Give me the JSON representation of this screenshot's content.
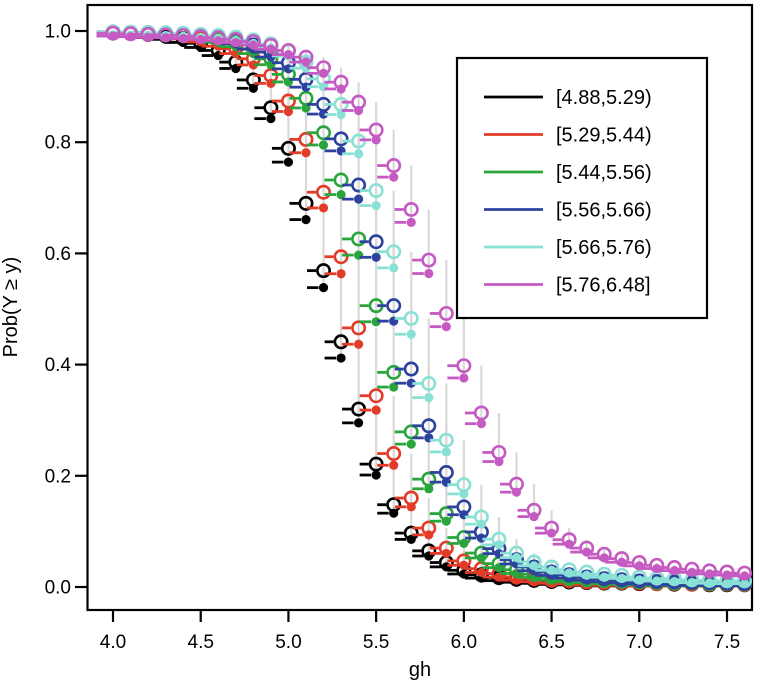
{
  "figure": {
    "background": "#ffffff"
  },
  "chart_data": {
    "type": "scatter",
    "subtype": "step-probability-curves-with-open-and-filled-circles",
    "title": "",
    "xlabel": "gh",
    "ylabel": "Prob(Y ≥ y)",
    "xlim": [
      3.87,
      7.65
    ],
    "ylim": [
      -0.05,
      1.045
    ],
    "grid": false,
    "legend_position": "top-right",
    "riser_color": "#d9d9d9",
    "x_ticks": [
      4.0,
      4.5,
      5.0,
      5.5,
      6.0,
      6.5,
      7.0,
      7.5
    ],
    "x_tick_labels": [
      "4.0",
      "4.5",
      "5.0",
      "5.5",
      "6.0",
      "6.5",
      "7.0",
      "7.5"
    ],
    "y_ticks": [
      0.0,
      0.2,
      0.4,
      0.6,
      0.8,
      1.0
    ],
    "y_tick_labels": [
      "0.0",
      "0.2",
      "0.4",
      "0.6",
      "0.8",
      "1.0"
    ],
    "x": [
      4.0,
      4.1,
      4.2,
      4.3,
      4.4,
      4.5,
      4.6,
      4.7,
      4.8,
      4.9,
      5.0,
      5.1,
      5.2,
      5.3,
      5.4,
      5.5,
      5.6,
      5.7,
      5.8,
      5.9,
      6.0,
      6.1,
      6.2,
      6.3,
      6.4,
      6.5,
      6.6,
      6.7,
      6.8,
      6.9,
      7.0,
      7.1,
      7.2,
      7.3,
      7.4,
      7.5,
      7.6
    ],
    "series": [
      {
        "name": "[4.88,5.29)",
        "color": "#000000",
        "p": [
          0.997,
          0.996,
          0.994,
          0.991,
          0.986,
          0.978,
          0.965,
          0.944,
          0.912,
          0.862,
          0.789,
          0.69,
          0.569,
          0.441,
          0.32,
          0.221,
          0.148,
          0.097,
          0.065,
          0.044,
          0.03,
          0.022,
          0.017,
          0.014,
          0.012,
          0.01,
          0.009,
          0.008,
          0.007,
          0.007,
          0.006,
          0.006,
          0.005,
          0.005,
          0.004,
          0.004,
          0.004
        ]
      },
      {
        "name": "[5.29,5.44)",
        "color": "#e23b28",
        "p": [
          0.998,
          0.997,
          0.996,
          0.994,
          0.992,
          0.987,
          0.98,
          0.968,
          0.95,
          0.92,
          0.874,
          0.805,
          0.71,
          0.594,
          0.466,
          0.344,
          0.24,
          0.16,
          0.106,
          0.07,
          0.047,
          0.033,
          0.024,
          0.018,
          0.015,
          0.012,
          0.011,
          0.009,
          0.008,
          0.008,
          0.007,
          0.006,
          0.006,
          0.005,
          0.005,
          0.005,
          0.004
        ]
      },
      {
        "name": "[5.44,5.56)",
        "color": "#2aa53c",
        "p": [
          0.998,
          0.997,
          0.997,
          0.995,
          0.994,
          0.991,
          0.986,
          0.979,
          0.968,
          0.95,
          0.922,
          0.879,
          0.817,
          0.732,
          0.626,
          0.506,
          0.386,
          0.279,
          0.194,
          0.132,
          0.089,
          0.061,
          0.042,
          0.031,
          0.023,
          0.018,
          0.015,
          0.013,
          0.011,
          0.01,
          0.009,
          0.008,
          0.007,
          0.007,
          0.006,
          0.006,
          0.005
        ]
      },
      {
        "name": "[5.56,5.66)",
        "color": "#2d429f",
        "p": [
          0.998,
          0.997,
          0.997,
          0.996,
          0.994,
          0.992,
          0.989,
          0.984,
          0.975,
          0.962,
          0.943,
          0.913,
          0.868,
          0.806,
          0.723,
          0.621,
          0.506,
          0.392,
          0.29,
          0.206,
          0.144,
          0.099,
          0.069,
          0.049,
          0.036,
          0.027,
          0.022,
          0.018,
          0.015,
          0.013,
          0.011,
          0.01,
          0.009,
          0.008,
          0.008,
          0.007,
          0.006
        ]
      },
      {
        "name": "[5.66,5.76)",
        "color": "#89e0d4",
        "p": [
          0.998,
          0.998,
          0.997,
          0.997,
          0.996,
          0.994,
          0.992,
          0.989,
          0.984,
          0.977,
          0.964,
          0.944,
          0.914,
          0.868,
          0.802,
          0.713,
          0.603,
          0.483,
          0.366,
          0.264,
          0.184,
          0.126,
          0.086,
          0.061,
          0.045,
          0.036,
          0.031,
          0.027,
          0.023,
          0.021,
          0.018,
          0.016,
          0.015,
          0.013,
          0.012,
          0.011,
          0.011
        ]
      },
      {
        "name": "[5.76,6.48]",
        "color": "#c45ac2",
        "p": [
          0.996,
          0.995,
          0.994,
          0.993,
          0.992,
          0.99,
          0.988,
          0.985,
          0.981,
          0.974,
          0.965,
          0.953,
          0.934,
          0.908,
          0.872,
          0.822,
          0.758,
          0.679,
          0.588,
          0.492,
          0.398,
          0.313,
          0.242,
          0.185,
          0.138,
          0.106,
          0.085,
          0.07,
          0.059,
          0.051,
          0.044,
          0.039,
          0.035,
          0.032,
          0.029,
          0.027,
          0.025
        ]
      }
    ]
  }
}
